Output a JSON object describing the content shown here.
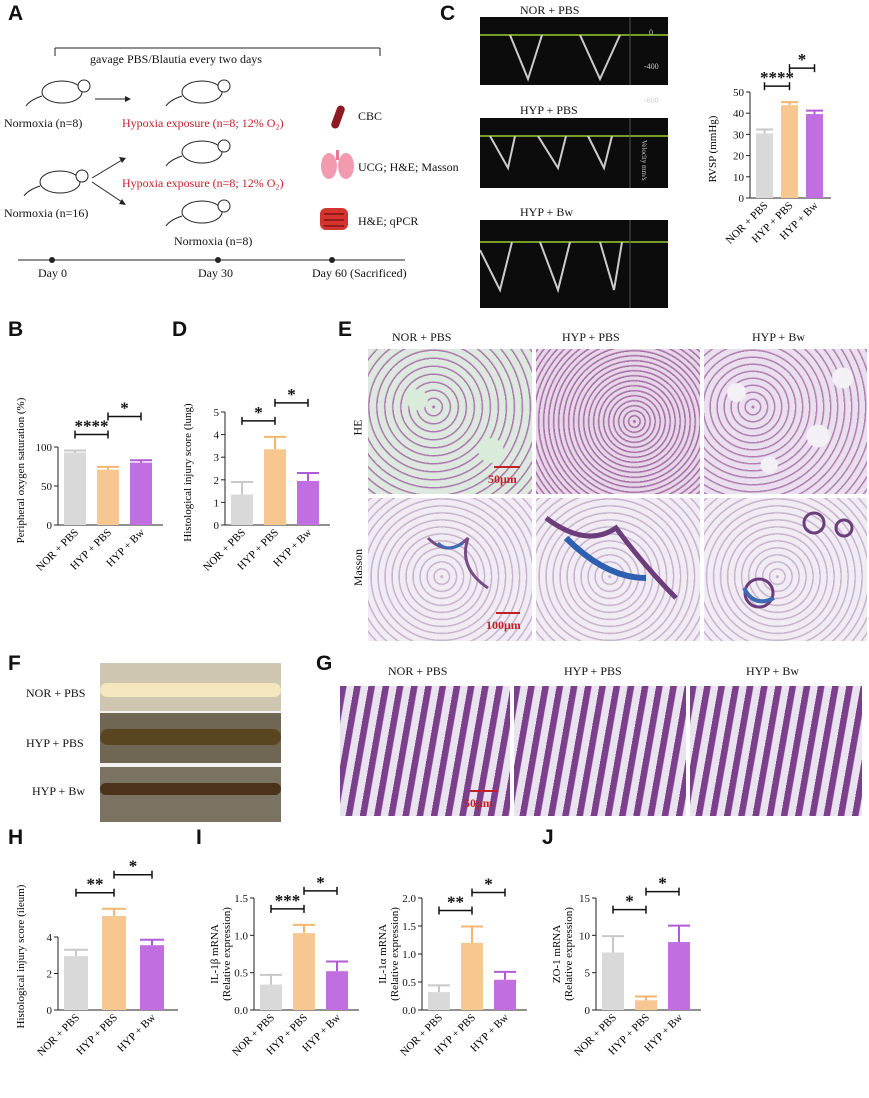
{
  "labels": {
    "A": "A",
    "B": "B",
    "C": "C",
    "D": "D",
    "E": "E",
    "F": "F",
    "G": "G",
    "H": "H",
    "I": "I",
    "J": "J"
  },
  "panelA": {
    "gavage": "gavage PBS/Blautia every two days",
    "normoxia8": "Normoxia (n=8)",
    "normoxia16": "Normoxia (n=16)",
    "hypoxia1": "Hypoxia exposure (n=8; 12% O₂)",
    "hypoxia2": "Hypoxia exposure (n=8; 12% O₂)",
    "normoxia8b": "Normoxia (n=8)",
    "cbc": "CBC",
    "ucg": "UCG; H&E; Masson",
    "hqpcr": "H&E; qPCR",
    "day0": "Day 0",
    "day30": "Day 30",
    "day60": "Day 60 (Sacrificed)"
  },
  "groups": [
    "NOR + PBS",
    "HYP + PBS",
    "HYP + Bw"
  ],
  "panelC": {
    "echo_titles": [
      "NOR + PBS",
      "HYP + PBS",
      "HYP + Bw"
    ],
    "echo_axis": [
      "0",
      "-400",
      "-800"
    ],
    "echo_unit": "Velocity mm/s"
  },
  "panelE": {
    "col_titles": [
      "NOR + PBS",
      "HYP + PBS",
      "HYP + Bw"
    ],
    "row_he": "HE",
    "row_masson": "Masson",
    "scale1": "50μm",
    "scale2": "100μm"
  },
  "panelF": {
    "rows": [
      "NOR + PBS",
      "HYP + PBS",
      "HYP + Bw"
    ]
  },
  "panelG": {
    "col_titles": [
      "NOR + PBS",
      "HYP + PBS",
      "HYP + Bw"
    ],
    "scale": "50μm"
  },
  "colors": {
    "nor": "#d9d9d9",
    "hyp": "#f7c791",
    "bw": "#c16fe0",
    "err_nor": "#c8c8c8",
    "err_hyp": "#f4b56f",
    "err_bw": "#b05bd6"
  },
  "chart_data": [
    {
      "id": "C",
      "type": "bar",
      "ylabel": "RVSP (mmHg)",
      "ylim": [
        0,
        50
      ],
      "yticks": [
        0,
        10,
        20,
        30,
        40,
        50
      ],
      "categories": [
        "NOR + PBS",
        "HYP + PBS",
        "HYP + Bw"
      ],
      "values": [
        30.5,
        43.8,
        39.6
      ],
      "errors": [
        1.8,
        1.4,
        1.6
      ],
      "sig": [
        {
          "from": 0,
          "to": 1,
          "label": "****"
        },
        {
          "from": 1,
          "to": 2,
          "label": "*"
        }
      ]
    },
    {
      "id": "B",
      "type": "bar",
      "ylabel": "Peripheral oxygen saturation (%)",
      "ylim": [
        0,
        150
      ],
      "yticks": [
        0,
        50,
        100
      ],
      "categories": [
        "NOR + PBS",
        "HYP + PBS",
        "HYP + Bw"
      ],
      "values": [
        93,
        71,
        80
      ],
      "errors": [
        2.5,
        3.5,
        3
      ],
      "sig": [
        {
          "from": 0,
          "to": 1,
          "label": "****"
        },
        {
          "from": 1,
          "to": 2,
          "label": "*"
        }
      ]
    },
    {
      "id": "D",
      "type": "bar",
      "ylabel": "Histological injury score (lung)",
      "ylim": [
        0,
        5
      ],
      "yticks": [
        0,
        1,
        2,
        3,
        4,
        5
      ],
      "categories": [
        "NOR + PBS",
        "HYP + PBS",
        "HYP + Bw"
      ],
      "values": [
        1.35,
        3.35,
        1.95
      ],
      "errors": [
        0.55,
        0.55,
        0.35
      ],
      "sig": [
        {
          "from": 0,
          "to": 1,
          "label": "*"
        },
        {
          "from": 1,
          "to": 2,
          "label": "*"
        }
      ]
    },
    {
      "id": "H",
      "type": "bar",
      "ylabel": "Histological injury score (ileum)",
      "ylim": [
        0,
        6.3
      ],
      "yticks": [
        0,
        2,
        4
      ],
      "categories": [
        "NOR + PBS",
        "HYP + PBS",
        "HYP + Bw"
      ],
      "values": [
        2.95,
        5.15,
        3.55
      ],
      "errors": [
        0.35,
        0.4,
        0.3
      ],
      "sig": [
        {
          "from": 0,
          "to": 1,
          "label": "**"
        },
        {
          "from": 1,
          "to": 2,
          "label": "*"
        }
      ]
    },
    {
      "id": "I1",
      "type": "bar",
      "ylabel": "IL-1β mRNA",
      "ylabel2": "(Relative expression)",
      "ylim": [
        0,
        1.5
      ],
      "yticks": [
        0.0,
        0.5,
        1.0,
        1.5
      ],
      "ytick_labels": [
        "0.0",
        "0.5",
        "1.0",
        "1.5"
      ],
      "categories": [
        "NOR + PBS",
        "HYP + PBS",
        "HYP + Bw"
      ],
      "values": [
        0.34,
        1.03,
        0.52
      ],
      "errors": [
        0.13,
        0.11,
        0.13
      ],
      "sig": [
        {
          "from": 0,
          "to": 1,
          "label": "***"
        },
        {
          "from": 1,
          "to": 2,
          "label": "*"
        }
      ]
    },
    {
      "id": "I2",
      "type": "bar",
      "ylabel": "IL-1α mRNA",
      "ylabel2": "(Relative expression)",
      "ylim": [
        0,
        2.0
      ],
      "yticks": [
        0.0,
        0.5,
        1.0,
        1.5,
        2.0
      ],
      "ytick_labels": [
        "0.0",
        "0.5",
        "1.0",
        "1.5",
        "2.0"
      ],
      "categories": [
        "NOR + PBS",
        "HYP + PBS",
        "HYP + Bw"
      ],
      "values": [
        0.32,
        1.2,
        0.54
      ],
      "errors": [
        0.12,
        0.29,
        0.14
      ],
      "sig": [
        {
          "from": 0,
          "to": 1,
          "label": "**"
        },
        {
          "from": 1,
          "to": 2,
          "label": "*"
        }
      ]
    },
    {
      "id": "J",
      "type": "bar",
      "ylabel": "ZO-1 mRNA",
      "ylabel2": "(Relative expression)",
      "ylim": [
        0,
        15
      ],
      "yticks": [
        0,
        5,
        10,
        15
      ],
      "categories": [
        "NOR + PBS",
        "HYP + PBS",
        "HYP + Bw"
      ],
      "values": [
        7.7,
        1.3,
        9.1
      ],
      "errors": [
        2.2,
        0.5,
        2.2
      ],
      "sig": [
        {
          "from": 0,
          "to": 1,
          "label": "*"
        },
        {
          "from": 1,
          "to": 2,
          "label": "*"
        }
      ]
    }
  ]
}
